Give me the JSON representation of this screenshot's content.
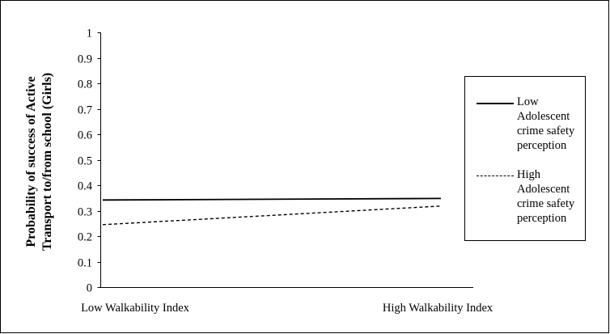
{
  "chart_data": {
    "type": "line",
    "title": "",
    "xlabel": "",
    "ylabel_lines": [
      "Probability of success of Active",
      "Transport to/from school (Girls)"
    ],
    "categories": [
      "Low Walkability Index",
      "High Walkability Index"
    ],
    "ylim": [
      0,
      1
    ],
    "yticks": [
      "0",
      "0.1",
      "0.2",
      "0.3",
      "0.4",
      "0.5",
      "0.6",
      "0.7",
      "0.8",
      "0.9",
      "1"
    ],
    "grid": false,
    "legend_position": "right",
    "series": [
      {
        "name_lines": [
          "Low",
          "Adolescent",
          "crime safety",
          "perception"
        ],
        "style": "solid",
        "values": [
          0.342,
          0.348
        ]
      },
      {
        "name_lines": [
          "High",
          "Adolescent",
          "crime safety",
          "perception"
        ],
        "style": "dashed",
        "values": [
          0.245,
          0.318
        ]
      }
    ]
  }
}
